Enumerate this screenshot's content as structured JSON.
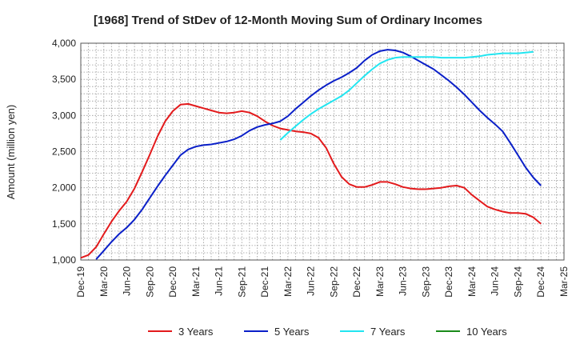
{
  "chart_data": {
    "type": "line",
    "title": "[1968]  Trend of StDev of 12-Month Moving Sum of Ordinary Incomes",
    "xlabel": "",
    "ylabel": "Amount (million yen)",
    "ylim": [
      1000,
      4000
    ],
    "yticks": [
      1000,
      1500,
      2000,
      2500,
      3000,
      3500,
      4000
    ],
    "ytick_labels": [
      "1,000",
      "1,500",
      "2,000",
      "2,500",
      "3,000",
      "3,500",
      "4,000"
    ],
    "xtick_labels": [
      "Dec-19",
      "Mar-20",
      "Jun-20",
      "Sep-20",
      "Dec-20",
      "Mar-21",
      "Jun-21",
      "Sep-21",
      "Dec-21",
      "Mar-22",
      "Jun-22",
      "Sep-22",
      "Dec-22",
      "Mar-23",
      "Jun-23",
      "Sep-23",
      "Dec-23",
      "Mar-24",
      "Jun-24",
      "Sep-24",
      "Dec-24",
      "Mar-25"
    ],
    "grid": true,
    "legend_position": "bottom",
    "series": [
      {
        "name": "3 Years",
        "color": "#e31a1c",
        "start_month": 0,
        "values": [
          1030,
          1070,
          1180,
          1360,
          1530,
          1680,
          1810,
          1990,
          2220,
          2460,
          2710,
          2920,
          3060,
          3150,
          3160,
          3130,
          3100,
          3070,
          3040,
          3030,
          3040,
          3060,
          3040,
          2990,
          2920,
          2860,
          2820,
          2800,
          2780,
          2770,
          2750,
          2690,
          2550,
          2330,
          2150,
          2050,
          2010,
          2010,
          2040,
          2080,
          2080,
          2050,
          2010,
          1990,
          1980,
          1980,
          1990,
          2000,
          2020,
          2030,
          2000,
          1900,
          1820,
          1740,
          1700,
          1670,
          1650,
          1650,
          1640,
          1590,
          1500
        ]
      },
      {
        "name": "5 Years",
        "color": "#0a1fc8",
        "start_month": 2,
        "values": [
          1010,
          1130,
          1250,
          1360,
          1450,
          1560,
          1700,
          1860,
          2020,
          2170,
          2310,
          2450,
          2530,
          2570,
          2590,
          2600,
          2620,
          2640,
          2670,
          2720,
          2790,
          2840,
          2870,
          2890,
          2920,
          2990,
          3090,
          3180,
          3270,
          3350,
          3420,
          3480,
          3530,
          3590,
          3660,
          3760,
          3840,
          3890,
          3910,
          3900,
          3870,
          3820,
          3760,
          3700,
          3640,
          3560,
          3480,
          3390,
          3290,
          3180,
          3070,
          2970,
          2880,
          2780,
          2620,
          2450,
          2280,
          2140,
          2030
        ]
      },
      {
        "name": "7 Years",
        "color": "#22e5f0",
        "start_month": 26,
        "values": [
          2660,
          2760,
          2850,
          2940,
          3020,
          3090,
          3150,
          3210,
          3270,
          3350,
          3450,
          3550,
          3640,
          3720,
          3770,
          3800,
          3810,
          3810,
          3810,
          3810,
          3810,
          3800,
          3800,
          3800,
          3800,
          3810,
          3820,
          3840,
          3850,
          3860,
          3860,
          3860,
          3870,
          3880
        ]
      },
      {
        "name": "10 Years",
        "color": "#1a8a1a",
        "start_month": 0,
        "values": []
      }
    ]
  }
}
